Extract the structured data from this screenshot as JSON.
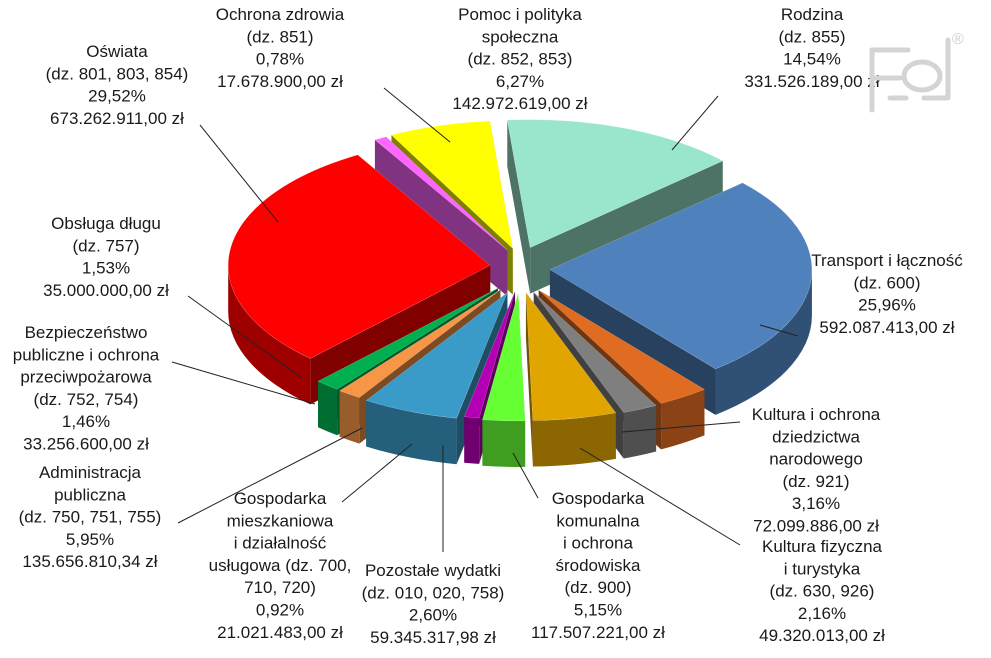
{
  "chart_data": {
    "type": "pie",
    "title": "",
    "three_d": true,
    "exploded": true,
    "slices": [
      {
        "name": "Rodzina",
        "division": "(dz. 855)",
        "percent": 14.54,
        "percent_label": "14,54%",
        "amount_label": "331.526.189,00 zł",
        "color": "#99E6CC"
      },
      {
        "name": "Transport i łączność",
        "division": "(dz. 600)",
        "percent": 25.96,
        "percent_label": "25,96%",
        "amount_label": "592.087.413,00 zł",
        "color": "#4F81BD"
      },
      {
        "name": "Kultura i ochrona dziedzictwa narodowego",
        "division": "(dz. 921)",
        "percent": 3.16,
        "percent_label": "3,16%",
        "amount_label": "72.099.886,00 zł",
        "color": "#E06C22"
      },
      {
        "name": "Kultura fizyczna i turystyka",
        "division": "(dz. 630, 926)",
        "percent": 2.16,
        "percent_label": "2,16%",
        "amount_label": "49.320.013,00 zł",
        "color": "#7F7F7F"
      },
      {
        "name": "Gospodarka komunalna i ochrona środowiska",
        "division": "(dz. 900)",
        "percent": 5.15,
        "percent_label": "5,15%",
        "amount_label": "117.507.221,00 zł",
        "color": "#E1A500"
      },
      {
        "name": "Pozostałe wydatki",
        "division": "(dz. 010, 020, 758)",
        "percent": 2.6,
        "percent_label": "2,60%",
        "amount_label": "59.345.317,98 zł",
        "color": "#66FF33"
      },
      {
        "name": "Gospodarka mieszkaniowa i działalność usługowa",
        "division": "(dz. 700, 710, 720)",
        "percent": 0.92,
        "percent_label": "0,92%",
        "amount_label": "21.021.483,00 zł",
        "color": "#B400B4"
      },
      {
        "name": "Administracja publiczna",
        "division": "(dz. 750, 751, 755)",
        "percent": 5.95,
        "percent_label": "5,95%",
        "amount_label": "135.656.810,34 zł",
        "color": "#3A9BC8"
      },
      {
        "name": "Bezpieczeństwo publiczne i ochrona przeciwpożarowa",
        "division": "(dz. 752, 754)",
        "percent": 1.46,
        "percent_label": "1,46%",
        "amount_label": "33.256.600,00 zł",
        "color": "#F79646"
      },
      {
        "name": "Obsługa długu",
        "division": "(dz. 757)",
        "percent": 1.53,
        "percent_label": "1,53%",
        "amount_label": "35.000.000,00 zł",
        "color": "#00B050"
      },
      {
        "name": "Oświata",
        "division": "(dz. 801, 803, 854)",
        "percent": 29.52,
        "percent_label": "29,52%",
        "amount_label": "673.262.911,00 zł",
        "color": "#FF0000"
      },
      {
        "name": "Ochrona zdrowia",
        "division": "(dz. 851)",
        "percent": 0.78,
        "percent_label": "0,78%",
        "amount_label": "17.678.900,00 zł",
        "color": "#FF66FF"
      },
      {
        "name": "Pomoc i polityka społeczna",
        "division": "(dz. 852, 853)",
        "percent": 6.27,
        "percent_label": "6,27%",
        "amount_label": "142.972.619,00 zł",
        "color": "#FFFF00"
      }
    ],
    "labels": [
      {
        "slice": 0,
        "lines": [
          "Rodzina",
          "(dz. 855)",
          "14,54%",
          "331.526.189,00 zł"
        ]
      },
      {
        "slice": 1,
        "lines": [
          "Transport i łączność",
          "(dz. 600)",
          "25,96%",
          "592.087.413,00 zł"
        ]
      },
      {
        "slice": 2,
        "lines": [
          "Kultura i ochrona",
          "dziedzictwa",
          "narodowego",
          "(dz. 921)",
          "3,16%",
          "72.099.886,00 zł"
        ]
      },
      {
        "slice": 3,
        "lines": [
          "Kultura fizyczna",
          "i turystyka",
          "(dz. 630, 926)",
          "2,16%",
          "49.320.013,00 zł"
        ]
      },
      {
        "slice": 4,
        "lines": [
          "Gospodarka",
          "komunalna",
          "i ochrona",
          "środowiska",
          "(dz. 900)",
          "5,15%",
          "117.507.221,00 zł"
        ]
      },
      {
        "slice": 5,
        "lines": [
          "Pozostałe wydatki",
          "(dz. 010, 020, 758)",
          "2,60%",
          "59.345.317,98 zł"
        ]
      },
      {
        "slice": 6,
        "lines": [
          "Gospodarka",
          "mieszkaniowa",
          "i działalność",
          "usługowa (dz. 700,",
          "710, 720)",
          "0,92%",
          "21.021.483,00 zł"
        ]
      },
      {
        "slice": 7,
        "lines": [
          "Administracja",
          "publiczna",
          "(dz. 750, 751, 755)",
          "5,95%",
          "135.656.810,34 zł"
        ]
      },
      {
        "slice": 8,
        "lines": [
          "Bezpieczeństwo",
          "publiczne i ochrona",
          "przeciwpożarowa",
          "(dz. 752, 754)",
          "1,46%",
          "33.256.600,00 zł"
        ]
      },
      {
        "slice": 9,
        "lines": [
          "Obsługa długu",
          "(dz. 757)",
          "1,53%",
          "35.000.000,00 zł"
        ]
      },
      {
        "slice": 10,
        "lines": [
          "Oświata",
          "(dz. 801, 803, 854)",
          "29,52%",
          "673.262.911,00 zł"
        ]
      },
      {
        "slice": 11,
        "lines": [
          "Ochrona zdrowia",
          "(dz. 851)",
          "0,78%",
          "17.678.900,00 zł"
        ]
      },
      {
        "slice": 12,
        "lines": [
          "Pomoc i polityka",
          "społeczna",
          "(dz. 852, 853)",
          "6,27%",
          "142.972.619,00 zł"
        ]
      }
    ]
  },
  "watermark": {
    "icon": "publisher-logo-watermark",
    "registered_mark": "®"
  }
}
